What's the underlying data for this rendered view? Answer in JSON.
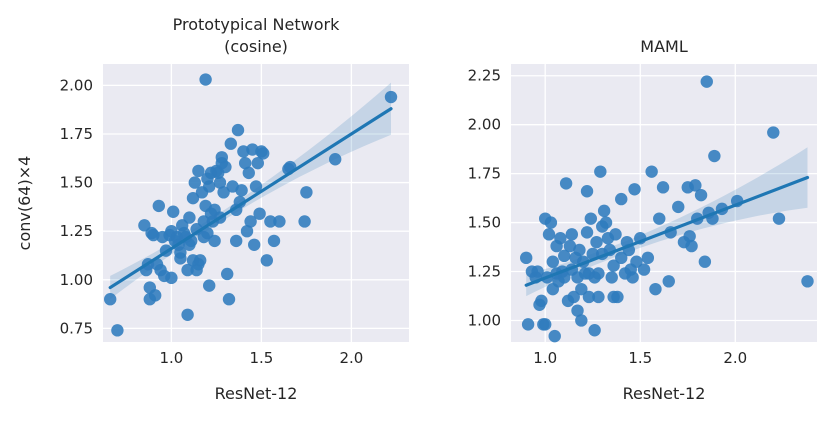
{
  "chart_data": [
    {
      "type": "scatter",
      "title": "Prototypical Network",
      "subtitle": "(cosine)",
      "xlabel": "ResNet-12",
      "ylabel": "conv(64)×4",
      "xlim": [
        0.62,
        2.32
      ],
      "ylim": [
        0.68,
        2.11
      ],
      "xticks": [
        1.0,
        1.5,
        2.0
      ],
      "xtick_labels": [
        "1.0",
        "1.5",
        "2.0"
      ],
      "yticks": [
        0.75,
        1.0,
        1.25,
        1.5,
        1.75,
        2.0
      ],
      "ytick_labels": [
        "0.75",
        "1.00",
        "1.25",
        "1.50",
        "1.75",
        "2.00"
      ],
      "grid": true,
      "regression": {
        "x": [
          0.66,
          2.22
        ],
        "y": [
          0.96,
          1.88
        ]
      },
      "points": [
        [
          0.66,
          0.9
        ],
        [
          0.7,
          0.74
        ],
        [
          0.85,
          1.28
        ],
        [
          0.86,
          1.05
        ],
        [
          0.87,
          1.08
        ],
        [
          0.88,
          0.96
        ],
        [
          0.88,
          0.9
        ],
        [
          0.89,
          1.24
        ],
        [
          0.9,
          1.23
        ],
        [
          0.91,
          0.92
        ],
        [
          0.92,
          1.08
        ],
        [
          0.93,
          1.38
        ],
        [
          0.94,
          1.05
        ],
        [
          0.95,
          1.22
        ],
        [
          0.96,
          1.02
        ],
        [
          0.97,
          1.15
        ],
        [
          0.99,
          1.23
        ],
        [
          1.0,
          1.25
        ],
        [
          1.0,
          1.01
        ],
        [
          1.01,
          1.35
        ],
        [
          1.02,
          1.2
        ],
        [
          1.03,
          1.22
        ],
        [
          1.04,
          1.18
        ],
        [
          1.05,
          1.11
        ],
        [
          1.05,
          1.14
        ],
        [
          1.06,
          1.28
        ],
        [
          1.07,
          1.24
        ],
        [
          1.08,
          1.22
        ],
        [
          1.09,
          0.82
        ],
        [
          1.09,
          1.05
        ],
        [
          1.1,
          1.32
        ],
        [
          1.1,
          1.18
        ],
        [
          1.11,
          1.2
        ],
        [
          1.12,
          1.1
        ],
        [
          1.12,
          1.42
        ],
        [
          1.13,
          1.5
        ],
        [
          1.14,
          1.26
        ],
        [
          1.14,
          1.05
        ],
        [
          1.15,
          1.56
        ],
        [
          1.15,
          1.08
        ],
        [
          1.16,
          1.1
        ],
        [
          1.17,
          1.45
        ],
        [
          1.18,
          1.3
        ],
        [
          1.18,
          1.22
        ],
        [
          1.19,
          2.03
        ],
        [
          1.19,
          1.38
        ],
        [
          1.2,
          1.52
        ],
        [
          1.2,
          1.24
        ],
        [
          1.21,
          1.48
        ],
        [
          1.21,
          0.97
        ],
        [
          1.22,
          1.55
        ],
        [
          1.22,
          1.34
        ],
        [
          1.23,
          1.3
        ],
        [
          1.24,
          1.2
        ],
        [
          1.24,
          1.36
        ],
        [
          1.25,
          1.56
        ],
        [
          1.26,
          1.55
        ],
        [
          1.27,
          1.5
        ],
        [
          1.27,
          1.32
        ],
        [
          1.28,
          1.6
        ],
        [
          1.28,
          1.63
        ],
        [
          1.29,
          1.45
        ],
        [
          1.3,
          1.58
        ],
        [
          1.31,
          1.03
        ],
        [
          1.32,
          0.9
        ],
        [
          1.33,
          1.7
        ],
        [
          1.34,
          1.48
        ],
        [
          1.36,
          1.2
        ],
        [
          1.36,
          1.36
        ],
        [
          1.37,
          1.77
        ],
        [
          1.38,
          1.4
        ],
        [
          1.39,
          1.46
        ],
        [
          1.4,
          1.66
        ],
        [
          1.41,
          1.6
        ],
        [
          1.42,
          1.25
        ],
        [
          1.43,
          1.55
        ],
        [
          1.44,
          1.3
        ],
        [
          1.45,
          1.67
        ],
        [
          1.46,
          1.18
        ],
        [
          1.47,
          1.48
        ],
        [
          1.48,
          1.6
        ],
        [
          1.49,
          1.34
        ],
        [
          1.5,
          1.66
        ],
        [
          1.51,
          1.65
        ],
        [
          1.53,
          1.1
        ],
        [
          1.55,
          1.3
        ],
        [
          1.57,
          1.2
        ],
        [
          1.6,
          1.3
        ],
        [
          1.65,
          1.57
        ],
        [
          1.66,
          1.58
        ],
        [
          1.74,
          1.3
        ],
        [
          1.75,
          1.45
        ],
        [
          1.91,
          1.62
        ],
        [
          2.22,
          1.94
        ]
      ]
    },
    {
      "type": "scatter",
      "title": "MAML",
      "xlabel": "ResNet-12",
      "ylabel": "",
      "xlim": [
        0.82,
        2.43
      ],
      "ylim": [
        0.89,
        2.31
      ],
      "xticks": [
        1.0,
        1.5,
        2.0
      ],
      "xtick_labels": [
        "1.0",
        "1.5",
        "2.0"
      ],
      "yticks": [
        1.0,
        1.25,
        1.5,
        1.75,
        2.0,
        2.25
      ],
      "ytick_labels": [
        "1.00",
        "1.25",
        "1.50",
        "1.75",
        "2.00",
        "2.25"
      ],
      "grid": true,
      "regression": {
        "x": [
          0.9,
          2.38
        ],
        "y": [
          1.18,
          1.73
        ]
      },
      "points": [
        [
          0.9,
          1.32
        ],
        [
          0.91,
          0.98
        ],
        [
          0.93,
          1.25
        ],
        [
          0.95,
          1.22
        ],
        [
          0.96,
          1.25
        ],
        [
          0.97,
          1.08
        ],
        [
          0.98,
          1.1
        ],
        [
          0.99,
          0.98
        ],
        [
          1.0,
          1.52
        ],
        [
          1.0,
          0.98
        ],
        [
          1.01,
          1.22
        ],
        [
          1.02,
          1.44
        ],
        [
          1.03,
          1.5
        ],
        [
          1.04,
          1.3
        ],
        [
          1.04,
          1.16
        ],
        [
          1.05,
          0.92
        ],
        [
          1.06,
          1.38
        ],
        [
          1.06,
          1.24
        ],
        [
          1.07,
          1.2
        ],
        [
          1.08,
          1.42
        ],
        [
          1.09,
          1.25
        ],
        [
          1.1,
          1.33
        ],
        [
          1.1,
          1.22
        ],
        [
          1.11,
          1.7
        ],
        [
          1.12,
          1.1
        ],
        [
          1.13,
          1.38
        ],
        [
          1.14,
          1.44
        ],
        [
          1.14,
          1.26
        ],
        [
          1.15,
          1.12
        ],
        [
          1.16,
          1.32
        ],
        [
          1.17,
          1.22
        ],
        [
          1.17,
          1.05
        ],
        [
          1.18,
          1.36
        ],
        [
          1.19,
          1.16
        ],
        [
          1.19,
          1.0
        ],
        [
          1.2,
          1.3
        ],
        [
          1.21,
          1.24
        ],
        [
          1.22,
          1.66
        ],
        [
          1.22,
          1.45
        ],
        [
          1.23,
          1.12
        ],
        [
          1.23,
          1.24
        ],
        [
          1.24,
          1.52
        ],
        [
          1.25,
          1.34
        ],
        [
          1.26,
          1.22
        ],
        [
          1.26,
          0.95
        ],
        [
          1.27,
          1.4
        ],
        [
          1.28,
          1.24
        ],
        [
          1.28,
          1.12
        ],
        [
          1.29,
          1.76
        ],
        [
          1.3,
          1.34
        ],
        [
          1.3,
          1.48
        ],
        [
          1.31,
          1.56
        ],
        [
          1.32,
          1.5
        ],
        [
          1.33,
          1.42
        ],
        [
          1.34,
          1.36
        ],
        [
          1.35,
          1.22
        ],
        [
          1.36,
          1.28
        ],
        [
          1.36,
          1.12
        ],
        [
          1.37,
          1.44
        ],
        [
          1.38,
          1.12
        ],
        [
          1.4,
          1.32
        ],
        [
          1.4,
          1.62
        ],
        [
          1.42,
          1.24
        ],
        [
          1.43,
          1.4
        ],
        [
          1.44,
          1.36
        ],
        [
          1.45,
          1.26
        ],
        [
          1.46,
          1.22
        ],
        [
          1.47,
          1.67
        ],
        [
          1.48,
          1.3
        ],
        [
          1.5,
          1.42
        ],
        [
          1.52,
          1.26
        ],
        [
          1.54,
          1.32
        ],
        [
          1.56,
          1.76
        ],
        [
          1.58,
          1.16
        ],
        [
          1.6,
          1.52
        ],
        [
          1.62,
          1.68
        ],
        [
          1.65,
          1.2
        ],
        [
          1.66,
          1.45
        ],
        [
          1.7,
          1.58
        ],
        [
          1.73,
          1.4
        ],
        [
          1.75,
          1.68
        ],
        [
          1.76,
          1.43
        ],
        [
          1.77,
          1.38
        ],
        [
          1.79,
          1.69
        ],
        [
          1.8,
          1.52
        ],
        [
          1.82,
          1.64
        ],
        [
          1.84,
          1.3
        ],
        [
          1.85,
          2.22
        ],
        [
          1.86,
          1.55
        ],
        [
          1.88,
          1.52
        ],
        [
          1.89,
          1.84
        ],
        [
          1.93,
          1.57
        ],
        [
          2.01,
          1.61
        ],
        [
          2.2,
          1.96
        ],
        [
          2.23,
          1.52
        ],
        [
          2.38,
          1.2
        ]
      ]
    }
  ]
}
